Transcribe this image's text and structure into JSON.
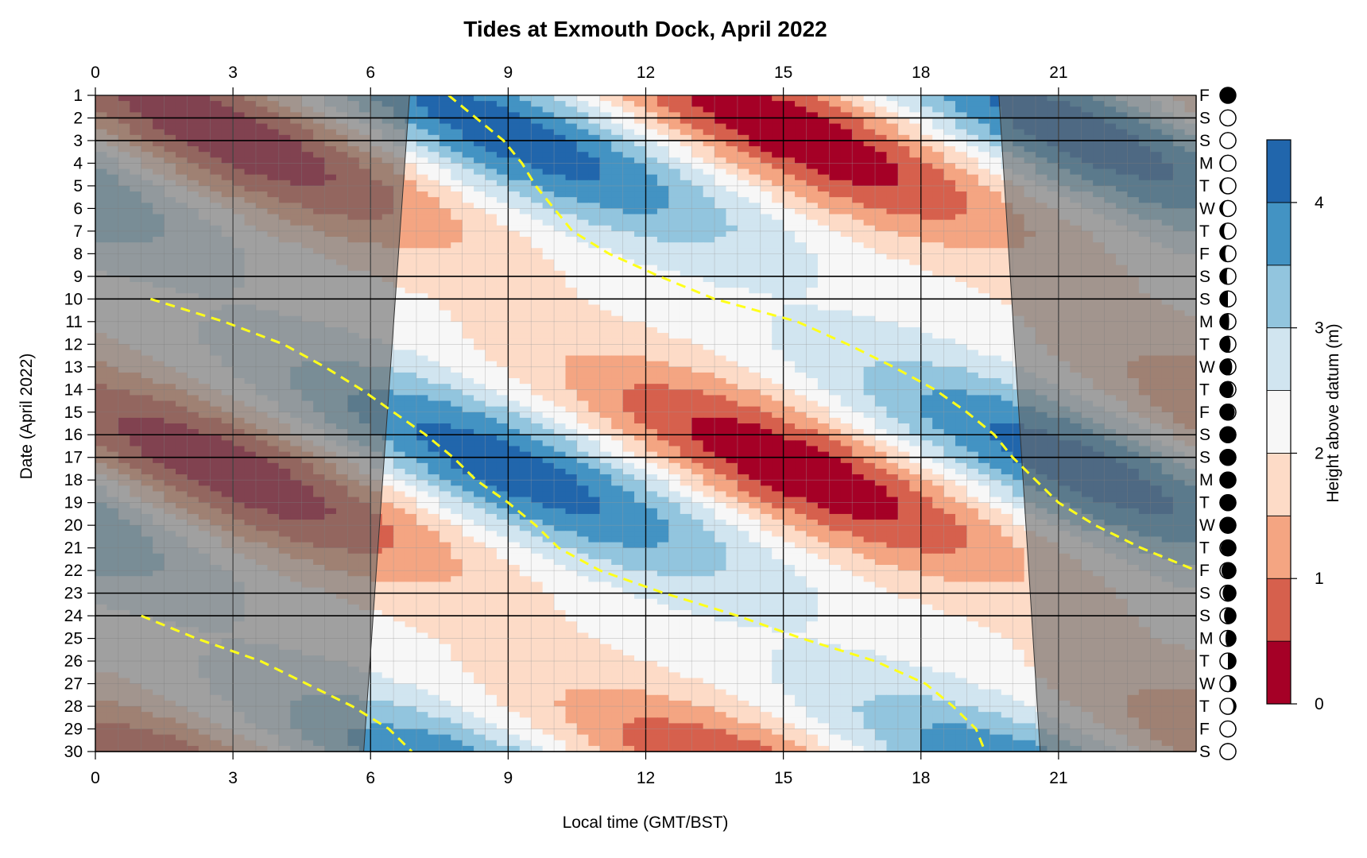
{
  "chart_data": {
    "type": "heatmap",
    "title": "Tides at Exmouth Dock, April 2022",
    "xlabel": "Local time (GMT/BST)",
    "ylabel": "Date (April 2022)",
    "xlim": [
      0,
      24
    ],
    "ylim": [
      1,
      30
    ],
    "x_ticks": [
      0,
      3,
      6,
      9,
      12,
      15,
      18,
      21
    ],
    "y_ticks": [
      1,
      2,
      3,
      4,
      5,
      6,
      7,
      8,
      9,
      10,
      11,
      12,
      13,
      14,
      15,
      16,
      17,
      18,
      19,
      20,
      21,
      22,
      23,
      24,
      25,
      26,
      27,
      28,
      29,
      30
    ],
    "weekday_letters": [
      "F",
      "S",
      "S",
      "M",
      "T",
      "W",
      "T",
      "F",
      "S",
      "S",
      "M",
      "T",
      "W",
      "T",
      "F",
      "S",
      "S",
      "M",
      "T",
      "W",
      "T",
      "F",
      "S",
      "S",
      "M",
      "T",
      "W",
      "T",
      "F",
      "S"
    ],
    "moon_phase": [
      0.0,
      0.03,
      0.1,
      0.17,
      0.22,
      0.28,
      0.34,
      0.39,
      0.45,
      0.5,
      0.55,
      0.61,
      0.68,
      0.75,
      0.83,
      0.9,
      0.97,
      1.0,
      0.96,
      0.92,
      0.86,
      0.8,
      0.73,
      0.66,
      0.6,
      0.5,
      0.4,
      0.26,
      0.12,
      0.03
    ],
    "colorbar": {
      "label": "Height above datum (m)",
      "ticks": [
        0,
        1,
        2,
        3,
        4
      ],
      "levels": [
        0,
        0.5,
        1,
        1.5,
        2,
        2.5,
        3,
        3.5,
        4,
        4.5
      ],
      "colors": [
        "#a50026",
        "#d6604d",
        "#f4a582",
        "#fddbc7",
        "#f7f7f7",
        "#d1e5f0",
        "#92c5de",
        "#4393c3",
        "#2166ac"
      ]
    },
    "weekend_days": [
      2,
      3,
      9,
      10,
      16,
      17,
      23,
      24,
      30
    ],
    "sunrise": [
      [
        1,
        6.85
      ],
      [
        30,
        5.85
      ]
    ],
    "sunset": [
      [
        1,
        19.7
      ],
      [
        30,
        20.6
      ]
    ],
    "tide_model": {
      "mean": 2.2,
      "amplitude": 1.2,
      "spring_amplitude": 0.9,
      "period_hours": 12.42,
      "high_water_day1": 7.6,
      "spring_day": 17.5,
      "spring_cycle_days": 14.77
    },
    "moonrise_line": [
      [
        1,
        7.7
      ],
      [
        2,
        8.3
      ],
      [
        3,
        8.9
      ],
      [
        4,
        9.3
      ],
      [
        5,
        9.6
      ],
      [
        6,
        10.0
      ],
      [
        7,
        10.4
      ],
      [
        8,
        11.2
      ],
      [
        9,
        12.3
      ],
      [
        10,
        13.5
      ],
      [
        11,
        15.3
      ],
      [
        12,
        16.4
      ],
      [
        13,
        17.4
      ],
      [
        14,
        18.3
      ],
      [
        15,
        19.0
      ],
      [
        16,
        19.6
      ],
      [
        17,
        20.0
      ],
      [
        18,
        20.5
      ],
      [
        19,
        21.0
      ],
      [
        20,
        21.8
      ],
      [
        21,
        22.8
      ],
      [
        22,
        24.0
      ]
    ],
    "moonrise_line_2": [
      [
        10,
        1.2
      ],
      [
        11,
        2.8
      ],
      [
        12,
        4.1
      ],
      [
        13,
        5.0
      ],
      [
        14,
        5.8
      ],
      [
        15,
        6.5
      ],
      [
        16,
        7.2
      ],
      [
        17,
        7.8
      ],
      [
        18,
        8.3
      ],
      [
        19,
        9.0
      ],
      [
        20,
        9.6
      ],
      [
        21,
        10.1
      ],
      [
        22,
        11.0
      ],
      [
        23,
        12.4
      ],
      [
        24,
        14.0
      ],
      [
        25,
        15.4
      ],
      [
        26,
        17.0
      ],
      [
        27,
        18.1
      ],
      [
        28,
        18.7
      ],
      [
        29,
        19.2
      ],
      [
        30,
        19.4
      ]
    ],
    "moonrise_line_3": [
      [
        24,
        1.0
      ],
      [
        25,
        2.2
      ],
      [
        26,
        3.6
      ],
      [
        27,
        4.6
      ],
      [
        28,
        5.6
      ],
      [
        29,
        6.4
      ],
      [
        30,
        6.9
      ]
    ]
  }
}
